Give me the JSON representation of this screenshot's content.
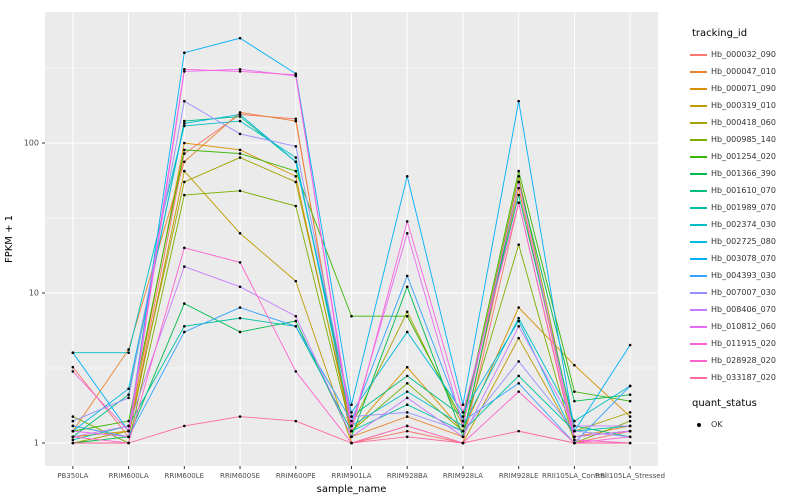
{
  "chart_data": {
    "type": "line",
    "title": "",
    "xlabel": "sample_name",
    "ylabel": "FPKM + 1",
    "y_scale": "log10",
    "y_ticks": [
      1,
      10,
      100
    ],
    "ylim": [
      0.9,
      700
    ],
    "grid": true,
    "panel_bg": "#EBEBEB",
    "grid_color": "#FFFFFF",
    "point_color": "#000000",
    "legend_title": "tracking_id",
    "quant_legend_title": "quant_status",
    "quant_status": [
      {
        "label": "OK"
      }
    ],
    "legend_position": "right",
    "categories": [
      "PB350LA",
      "RRIM600LA",
      "RRIM600LE",
      "RRIM600SE",
      "RRIM600PE",
      "RRIM901LA",
      "RRIM928BA",
      "RRIM928LA",
      "RRIM928LE",
      "RRII105LA_Control",
      "RRII105LA_Stressed"
    ],
    "series": [
      {
        "name": "Hb_000032_090",
        "color": "#F8766D",
        "values": [
          3.2,
          1.1,
          85,
          155,
          145,
          1.0,
          1.2,
          1.0,
          40,
          1.0,
          1.2
        ]
      },
      {
        "name": "Hb_000047_010",
        "color": "#EA8331",
        "values": [
          1.2,
          4.2,
          75,
          160,
          140,
          1.1,
          1.5,
          1.1,
          50,
          1.1,
          1.3
        ]
      },
      {
        "name": "Hb_000071_090",
        "color": "#D89000",
        "values": [
          1.1,
          1.2,
          100,
          90,
          60,
          1.2,
          3.2,
          1.2,
          8.0,
          3.3,
          1.5
        ]
      },
      {
        "name": "Hb_000319_010",
        "color": "#C09B00",
        "values": [
          1.3,
          1.1,
          65,
          25,
          12,
          1.0,
          1.3,
          1.0,
          5.0,
          1.1,
          1.2
        ]
      },
      {
        "name": "Hb_000418_060",
        "color": "#A3A500",
        "values": [
          1.0,
          1.2,
          55,
          80,
          55,
          1.3,
          7.5,
          1.3,
          60,
          1.2,
          1.6
        ]
      },
      {
        "name": "Hb_000985_140",
        "color": "#7CAE00",
        "values": [
          1.5,
          1.0,
          45,
          48,
          38,
          1.2,
          2.5,
          1.2,
          21,
          1.0,
          1.4
        ]
      },
      {
        "name": "Hb_001254_020",
        "color": "#39B600",
        "values": [
          1.2,
          1.4,
          90,
          85,
          65,
          7.0,
          7.0,
          1.4,
          65,
          2.2,
          1.9
        ]
      },
      {
        "name": "Hb_001366_390",
        "color": "#00BB4E",
        "values": [
          1.0,
          1.1,
          8.5,
          5.5,
          6.5,
          1.1,
          11,
          1.1,
          55,
          1.9,
          2.1
        ]
      },
      {
        "name": "Hb_001610_070",
        "color": "#00BF7D",
        "values": [
          1.1,
          2.1,
          140,
          150,
          75,
          1.5,
          2.8,
          1.5,
          45,
          1.3,
          1.1
        ]
      },
      {
        "name": "Hb_001989_070",
        "color": "#00C1A3",
        "values": [
          1.05,
          1.3,
          6.0,
          6.8,
          6.0,
          1.2,
          1.8,
          1.2,
          2.8,
          1.2,
          1.3
        ]
      },
      {
        "name": "Hb_002374_030",
        "color": "#00BFC4",
        "values": [
          4.0,
          4.0,
          130,
          140,
          80,
          1.3,
          2.2,
          1.3,
          6.8,
          1.4,
          2.4
        ]
      },
      {
        "name": "Hb_002725_080",
        "color": "#00BAE0",
        "values": [
          1.2,
          2.3,
          135,
          155,
          75,
          1.6,
          5.5,
          1.6,
          6.5,
          1.1,
          1.2
        ]
      },
      {
        "name": "Hb_003078_070",
        "color": "#00B0F6",
        "values": [
          4.0,
          1.2,
          400,
          500,
          290,
          1.8,
          60,
          1.8,
          190,
          1.2,
          4.5
        ]
      },
      {
        "name": "Hb_004393_030",
        "color": "#35A2FF",
        "values": [
          1.3,
          1.1,
          5.5,
          8.0,
          6.0,
          1.4,
          13,
          1.4,
          2.5,
          1.0,
          2.4
        ]
      },
      {
        "name": "Hb_007007_030",
        "color": "#9590FF",
        "values": [
          1.4,
          2.0,
          190,
          115,
          95,
          1.5,
          1.6,
          1.2,
          3.5,
          1.2,
          1.1
        ]
      },
      {
        "name": "Hb_008406_070",
        "color": "#C77CFF",
        "values": [
          1.1,
          1.3,
          15,
          11,
          7.0,
          1.1,
          2.0,
          1.1,
          6.0,
          1.3,
          1.3
        ]
      },
      {
        "name": "Hb_010812_060",
        "color": "#E76BF3",
        "values": [
          1.2,
          1.1,
          300,
          310,
          280,
          1.3,
          25,
          1.3,
          55,
          1.1,
          1.2
        ]
      },
      {
        "name": "Hb_011915_020",
        "color": "#FA62DB",
        "values": [
          3.0,
          1.2,
          310,
          300,
          285,
          1.2,
          30,
          1.6,
          40,
          1.05,
          1.0
        ]
      },
      {
        "name": "Hb_028928_020",
        "color": "#FF61CC",
        "values": [
          1.1,
          1.0,
          20,
          16,
          3.0,
          1.0,
          1.3,
          1.0,
          2.2,
          1.0,
          1.1
        ]
      },
      {
        "name": "Hb_033187_020",
        "color": "#FF6A98",
        "values": [
          1.0,
          1.0,
          1.3,
          1.5,
          1.4,
          1.0,
          1.1,
          1.0,
          1.2,
          1.0,
          1.0
        ]
      }
    ]
  }
}
